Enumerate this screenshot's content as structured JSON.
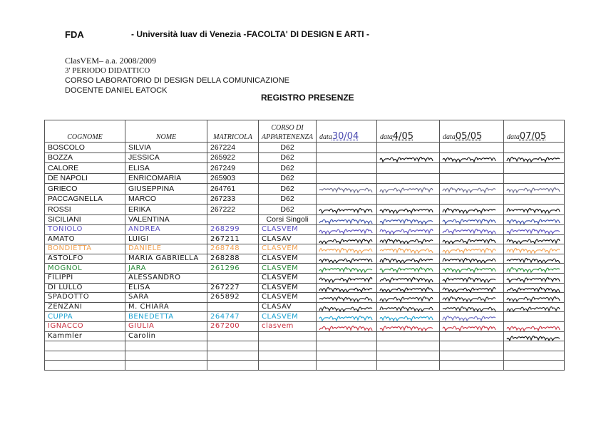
{
  "header": {
    "left": "FDA",
    "university": "- Università Iuav di Venezia -",
    "faculty": "FACOLTA' DI DESIGN E ARTI -"
  },
  "info": {
    "line1": "ClasVEM– a.a. 2008/2009",
    "line2": "3' PERIODO DIDATTICO",
    "line3": "CORSO LABORATORIO DI DESIGN DELLA COMUNICAZIONE",
    "line4": "DOCENTE DANIEL EATOCK"
  },
  "title": "REGISTRO PRESENZE",
  "columns": {
    "cognome": "COGNOME",
    "nome": "NOME",
    "matricola": "MATRICOLA",
    "corso": "CORSO DI APPARTENENZA",
    "date_prefix": "data",
    "dates": [
      "30/04",
      "4/05",
      "05/05",
      "07/05"
    ]
  },
  "rows": [
    {
      "cognome": "BOSCOLO",
      "nome": "SILVIA",
      "matricola": "267224",
      "corso": "D62",
      "color": "#111",
      "present": [
        0,
        0,
        0,
        0
      ]
    },
    {
      "cognome": "BOZZA",
      "nome": "JESSICA",
      "matricola": "265922",
      "corso": "D62",
      "color": "#111",
      "present": [
        0,
        1,
        1,
        1
      ]
    },
    {
      "cognome": "CALORE",
      "nome": "ELISA",
      "matricola": "267249",
      "corso": "D62",
      "color": "#111",
      "present": [
        0,
        0,
        0,
        0
      ]
    },
    {
      "cognome": "DE NAPOLI",
      "nome": "ENRICOMARIA",
      "matricola": "265903",
      "corso": "D62",
      "color": "#111",
      "present": [
        0,
        0,
        0,
        0
      ]
    },
    {
      "cognome": "GRIECO",
      "nome": "GIUSEPPINA",
      "matricola": "264761",
      "corso": "D62",
      "color": "#6a6a8a",
      "present": [
        1,
        1,
        1,
        1
      ]
    },
    {
      "cognome": "PACCAGNELLA",
      "nome": "MARCO",
      "matricola": "267233",
      "corso": "D62",
      "color": "#111",
      "present": [
        0,
        0,
        0,
        0
      ]
    },
    {
      "cognome": "ROSSI",
      "nome": "ERIKA",
      "matricola": "267222",
      "corso": "D62",
      "color": "#111",
      "present": [
        1,
        1,
        1,
        1
      ]
    },
    {
      "cognome": "SICILIANI",
      "nome": "VALENTINA",
      "matricola": "",
      "corso": "Corsi Singoli",
      "color": "#3a4fa8",
      "present": [
        1,
        1,
        1,
        1
      ]
    },
    {
      "cognome": "TONIOLO",
      "nome": "ANDREA",
      "matricola": "268299",
      "corso": "CLASVEM",
      "color": "#5b4fc0",
      "present": [
        1,
        1,
        1,
        1
      ]
    },
    {
      "cognome": "AMATO",
      "nome": "LUIGI",
      "matricola": "267211",
      "corso": "CLASAV",
      "color": "#111",
      "present": [
        1,
        1,
        1,
        1
      ]
    },
    {
      "cognome": "BONDIETTA",
      "nome": "DANIELE",
      "matricola": "268748",
      "corso": "CLASVEM",
      "color": "#f0a050",
      "present": [
        1,
        1,
        1,
        1
      ]
    },
    {
      "cognome": "ASTOLFO",
      "nome": "MARIA GABRIELLA",
      "matricola": "268288",
      "corso": "CLASVEM",
      "color": "#111",
      "present": [
        1,
        1,
        1,
        1
      ]
    },
    {
      "cognome": "MOGNOL",
      "nome": "JARA",
      "matricola": "261296",
      "corso": "CLASVEM",
      "color": "#2a8a3a",
      "present": [
        1,
        1,
        1,
        1
      ]
    },
    {
      "cognome": "FILIPPI",
      "nome": "ALESSANDRO",
      "matricola": "",
      "corso": "CLASVEM",
      "color": "#111",
      "present": [
        1,
        1,
        1,
        1
      ]
    },
    {
      "cognome": "DI LULLO",
      "nome": "ELISA",
      "matricola": "267227",
      "corso": "CLASVEM",
      "color": "#111",
      "present": [
        1,
        1,
        1,
        1
      ]
    },
    {
      "cognome": "SPADOTTO",
      "nome": "SARA",
      "matricola": "265892",
      "corso": "CLASVEM",
      "color": "#222",
      "present": [
        1,
        1,
        1,
        1
      ]
    },
    {
      "cognome": "ZENZANI",
      "nome": "M. CHIARA",
      "matricola": "",
      "corso": "CLASAV",
      "color": "#222",
      "present": [
        1,
        1,
        1,
        1
      ]
    },
    {
      "cognome": "CUPPA",
      "nome": "BENEDETTA",
      "matricola": "264747",
      "corso": "CLASVEM",
      "color": "#1aa0d0",
      "present": [
        1,
        1,
        1,
        0
      ]
    },
    {
      "cognome": "IGNACCO",
      "nome": "GIULIA",
      "matricola": "267200",
      "corso": "clasvem",
      "color": "#c83040",
      "present": [
        1,
        1,
        1,
        1
      ]
    },
    {
      "cognome": "Kammler",
      "nome": "Carolin",
      "matricola": "",
      "corso": "",
      "color": "#111",
      "present": [
        0,
        0,
        0,
        1
      ]
    },
    {
      "cognome": "",
      "nome": "",
      "matricola": "",
      "corso": "",
      "color": "#111",
      "present": [
        0,
        0,
        0,
        0
      ]
    },
    {
      "cognome": "",
      "nome": "",
      "matricola": "",
      "corso": "",
      "color": "#111",
      "present": [
        0,
        0,
        0,
        0
      ]
    },
    {
      "cognome": "",
      "nome": "",
      "matricola": "",
      "corso": "",
      "color": "#111",
      "present": [
        0,
        0,
        0,
        0
      ]
    }
  ]
}
